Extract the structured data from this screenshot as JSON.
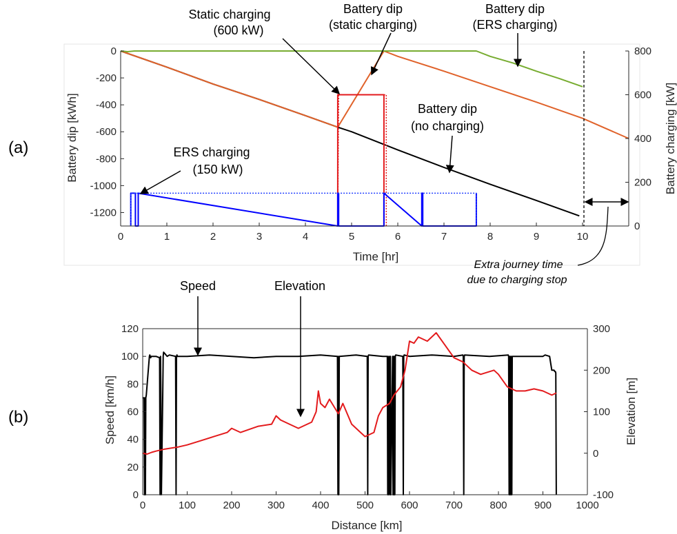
{
  "panels": {
    "a": "(a)",
    "b": "(b)"
  },
  "colors": {
    "orange": "#e0622a",
    "green": "#77ac30",
    "black": "#000000",
    "red": "#e31a1c",
    "blue": "#0000ff",
    "blue_dotted": "#1f3cff"
  },
  "chart_data": [
    {
      "id": "a",
      "type": "line",
      "xlabel": "Time [hr]",
      "ylabel_left": "Battery dip [kWh]",
      "ylabel_right": "Battery charging [kW]",
      "xlim": [
        0,
        11
      ],
      "ylim_left": [
        -1300,
        0
      ],
      "ylim_right": [
        0,
        800
      ],
      "x_ticks": [
        0,
        1,
        2,
        3,
        4,
        5,
        6,
        7,
        8,
        9,
        10
      ],
      "y_ticks_left": [
        0,
        -200,
        -400,
        -600,
        -800,
        -1000,
        -1200
      ],
      "y_ticks_right": [
        0,
        200,
        400,
        600,
        800
      ],
      "series": [
        {
          "name": "Battery dip (no charging)",
          "axis": "left",
          "color": "#000000",
          "style": "solid",
          "x": [
            0,
            1,
            2,
            3,
            4,
            4.7,
            5,
            6,
            7,
            8,
            9,
            9.93
          ],
          "y": [
            0,
            -120,
            -245,
            -360,
            -480,
            -566,
            -600,
            -735,
            -865,
            -990,
            -1110,
            -1225
          ]
        },
        {
          "name": "Battery dip (static charging)",
          "axis": "left",
          "color": "#e0622a",
          "style": "solid",
          "x": [
            0,
            1,
            2,
            3,
            4,
            4.7,
            5.7,
            6,
            7,
            8,
            9,
            10,
            11
          ],
          "y": [
            0,
            -120,
            -245,
            -360,
            -480,
            -566,
            0,
            -40,
            -150,
            -265,
            -380,
            -500,
            -650
          ]
        },
        {
          "name": "Battery dip (ERS charging)",
          "axis": "left",
          "color": "#77ac30",
          "style": "solid",
          "x": [
            0,
            0.15,
            0.3,
            7.7,
            8,
            8.5,
            9,
            9.5,
            10
          ],
          "y": [
            0,
            -5,
            0,
            0,
            -40,
            -90,
            -150,
            -205,
            -265
          ]
        },
        {
          "name": "Static charging (600 kW)",
          "axis": "right",
          "color": "#e31a1c",
          "style": "solid",
          "x": [
            4.7,
            4.7,
            5.7,
            5.7
          ],
          "y": [
            0,
            600,
            600,
            0
          ]
        },
        {
          "name": "Static charging (600 kW)",
          "axis": "right",
          "color": "#e31a1c",
          "style": "dotted",
          "x": [
            4.7,
            4.72,
            5.75,
            5.75
          ],
          "y": [
            0,
            600,
            600,
            0
          ]
        },
        {
          "name": "ERS charging (150 kW)",
          "axis": "right",
          "color": "#0000ff",
          "style": "solid",
          "x": [
            0.22,
            0.22,
            0.32,
            0.32,
            0.38,
            0.38,
            4.7,
            4.7,
            4.72,
            4.72,
            5.7,
            5.7,
            6.52,
            6.52,
            6.54,
            6.54,
            7.7,
            7.7
          ],
          "y": [
            0,
            150,
            150,
            0,
            0,
            150,
            0,
            150,
            150,
            0,
            0,
            150,
            0,
            150,
            150,
            0,
            0,
            150
          ]
        },
        {
          "name": "ERS charging (150 kW)",
          "axis": "right",
          "color": "#1f3cff",
          "style": "dotted",
          "x": [
            0.22,
            0.22,
            4.7,
            4.72,
            5.7,
            6.52,
            6.54,
            7.7,
            7.7
          ],
          "y": [
            0,
            150,
            150,
            150,
            150,
            150,
            150,
            150,
            0
          ]
        }
      ],
      "annotations": {
        "static_charging_line1": "Static charging",
        "static_charging_line2": "(600 kW)",
        "dip_static_line1": "Battery dip",
        "dip_static_line2": "(static charging)",
        "dip_ers_line1": "Battery dip",
        "dip_ers_line2": "(ERS charging)",
        "dip_none_line1": "Battery dip",
        "dip_none_line2": "(no charging)",
        "ers_line1": "ERS charging",
        "ers_line2": "(150 kW)",
        "extra_line1": "Extra journey time",
        "extra_line2": "due to charging stop"
      }
    },
    {
      "id": "b",
      "type": "line",
      "xlabel": "Distance [km]",
      "ylabel_left": "Speed [km/h]",
      "ylabel_right": "Elevation [m]",
      "xlim": [
        0,
        1000
      ],
      "ylim_left": [
        0,
        120
      ],
      "ylim_right": [
        -100,
        300
      ],
      "x_ticks": [
        0,
        100,
        200,
        300,
        400,
        500,
        600,
        700,
        800,
        900,
        1000
      ],
      "y_ticks_left": [
        0,
        20,
        40,
        60,
        80,
        100,
        120
      ],
      "y_ticks_right": [
        -100,
        0,
        100,
        200,
        300
      ],
      "series": [
        {
          "name": "Speed",
          "axis": "left",
          "color": "#000000",
          "x": [
            0,
            3,
            4,
            5,
            6,
            7,
            8,
            15,
            16,
            17,
            18,
            19,
            30,
            38,
            39,
            40,
            41,
            42,
            45,
            46,
            47,
            55,
            60,
            74,
            75,
            76,
            77,
            78,
            100,
            150,
            200,
            250,
            300,
            350,
            400,
            438,
            439,
            440,
            441,
            442,
            480,
            505,
            506,
            507,
            508,
            540,
            550,
            551,
            552,
            553,
            555,
            556,
            557,
            558,
            562,
            563,
            564,
            565,
            566,
            567,
            568,
            569,
            585,
            586,
            587,
            588,
            600,
            650,
            700,
            720,
            721,
            722,
            723,
            724,
            780,
            822,
            823,
            824,
            825,
            826,
            827,
            828,
            829,
            830,
            831,
            860,
            900,
            905,
            915,
            920,
            925,
            927,
            928,
            929,
            930
          ],
          "y": [
            70,
            70,
            0,
            70,
            0,
            70,
            72,
            100,
            101,
            100,
            99,
            100,
            100,
            99,
            0,
            100,
            70,
            0,
            70,
            100,
            103,
            100,
            101,
            100,
            0,
            100,
            101,
            100,
            100,
            101,
            100,
            99,
            100,
            100,
            101,
            100,
            0,
            100,
            0,
            100,
            101,
            100,
            0,
            100,
            101,
            100,
            100,
            0,
            100,
            0,
            100,
            0,
            100,
            0,
            100,
            0,
            100,
            0,
            100,
            0,
            100,
            101,
            100,
            0,
            100,
            101,
            100,
            101,
            100,
            101,
            100,
            0,
            100,
            101,
            100,
            101,
            100,
            0,
            100,
            0,
            100,
            0,
            100,
            0,
            100,
            100,
            100,
            101,
            100,
            90,
            90,
            89,
            89,
            88,
            0
          ]
        },
        {
          "name": "Elevation",
          "axis": "right",
          "color": "#e31a1c",
          "x": [
            0,
            10,
            20,
            30,
            50,
            80,
            100,
            130,
            160,
            190,
            200,
            220,
            260,
            290,
            300,
            310,
            330,
            350,
            380,
            390,
            395,
            400,
            410,
            420,
            440,
            450,
            470,
            490,
            500,
            520,
            530,
            540,
            555,
            565,
            580,
            590,
            600,
            610,
            620,
            640,
            660,
            680,
            700,
            720,
            740,
            760,
            790,
            800,
            820,
            840,
            860,
            880,
            900,
            920,
            930
          ],
          "y": [
            0,
            -2,
            2,
            5,
            10,
            15,
            20,
            30,
            40,
            50,
            60,
            50,
            65,
            70,
            90,
            80,
            70,
            60,
            75,
            100,
            150,
            120,
            110,
            130,
            95,
            120,
            70,
            50,
            40,
            50,
            90,
            110,
            120,
            140,
            160,
            200,
            270,
            265,
            280,
            270,
            290,
            260,
            230,
            220,
            200,
            190,
            200,
            190,
            160,
            150,
            150,
            155,
            150,
            140,
            145
          ]
        }
      ],
      "annotations": {
        "speed_label": "Speed",
        "elevation_label": "Elevation"
      }
    }
  ]
}
